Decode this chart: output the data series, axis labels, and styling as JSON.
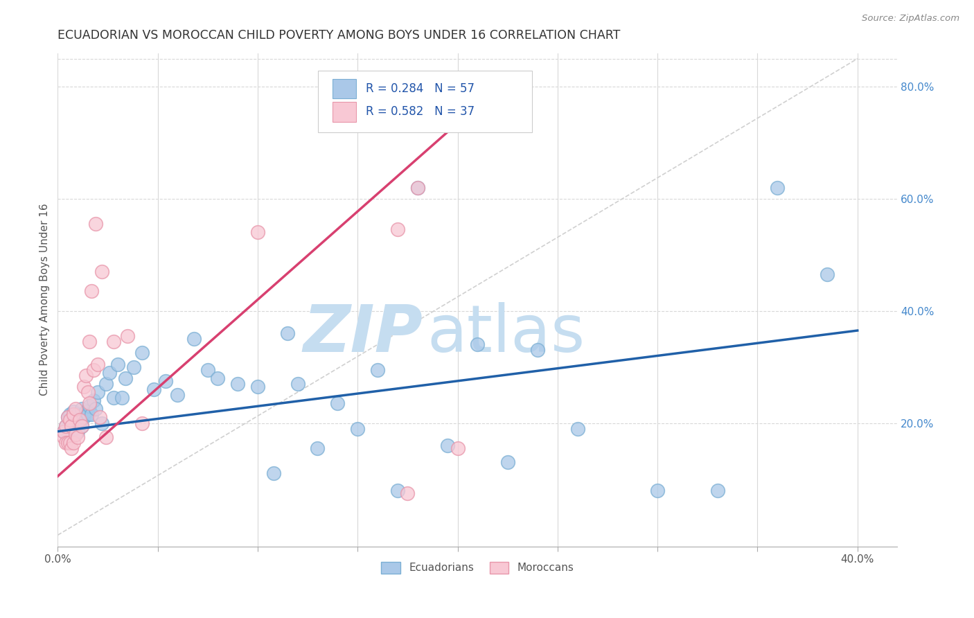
{
  "title": "ECUADORIAN VS MOROCCAN CHILD POVERTY AMONG BOYS UNDER 16 CORRELATION CHART",
  "source": "Source: ZipAtlas.com",
  "ylabel": "Child Poverty Among Boys Under 16",
  "xlim": [
    0.0,
    0.42
  ],
  "ylim": [
    -0.02,
    0.86
  ],
  "plot_xlim": [
    0.0,
    0.4
  ],
  "plot_ylim": [
    0.0,
    0.85
  ],
  "xticks": [
    0.0,
    0.05,
    0.1,
    0.15,
    0.2,
    0.25,
    0.3,
    0.35,
    0.4
  ],
  "xtick_labels": [
    "0.0%",
    "",
    "",
    "",
    "",
    "",
    "",
    "",
    "40.0%"
  ],
  "yticks_right": [
    0.2,
    0.4,
    0.6,
    0.8
  ],
  "ytick_labels_right": [
    "20.0%",
    "40.0%",
    "60.0%",
    "80.0%"
  ],
  "ecu_color": "#aac8e8",
  "ecu_edge_color": "#7bafd4",
  "mor_color": "#f8c8d4",
  "mor_edge_color": "#e896aa",
  "ecu_line_color": "#2060a8",
  "mor_line_color": "#d84070",
  "ref_line_color": "#d0d0d0",
  "watermark": "ZIPatlas",
  "watermark_color": "#c5ddf0",
  "legend_R_ecu": "R = 0.284",
  "legend_N_ecu": "N = 57",
  "legend_R_mor": "R = 0.582",
  "legend_N_mor": "N = 37",
  "ecu_scatter_x": [
    0.003,
    0.004,
    0.005,
    0.005,
    0.006,
    0.007,
    0.008,
    0.008,
    0.009,
    0.01,
    0.01,
    0.011,
    0.012,
    0.012,
    0.013,
    0.014,
    0.015,
    0.016,
    0.017,
    0.018,
    0.019,
    0.02,
    0.022,
    0.024,
    0.026,
    0.028,
    0.03,
    0.032,
    0.034,
    0.038,
    0.042,
    0.048,
    0.054,
    0.06,
    0.068,
    0.075,
    0.08,
    0.09,
    0.1,
    0.108,
    0.115,
    0.12,
    0.13,
    0.14,
    0.15,
    0.16,
    0.17,
    0.18,
    0.195,
    0.21,
    0.225,
    0.24,
    0.26,
    0.3,
    0.33,
    0.36,
    0.385
  ],
  "ecu_scatter_y": [
    0.185,
    0.195,
    0.175,
    0.21,
    0.215,
    0.2,
    0.19,
    0.22,
    0.205,
    0.185,
    0.215,
    0.2,
    0.195,
    0.225,
    0.21,
    0.22,
    0.215,
    0.23,
    0.215,
    0.24,
    0.225,
    0.255,
    0.2,
    0.27,
    0.29,
    0.245,
    0.305,
    0.245,
    0.28,
    0.3,
    0.325,
    0.26,
    0.275,
    0.25,
    0.35,
    0.295,
    0.28,
    0.27,
    0.265,
    0.11,
    0.36,
    0.27,
    0.155,
    0.235,
    0.19,
    0.295,
    0.08,
    0.62,
    0.16,
    0.34,
    0.13,
    0.33,
    0.19,
    0.08,
    0.08,
    0.62,
    0.465
  ],
  "mor_scatter_x": [
    0.003,
    0.003,
    0.004,
    0.004,
    0.005,
    0.005,
    0.006,
    0.006,
    0.007,
    0.007,
    0.008,
    0.008,
    0.009,
    0.009,
    0.01,
    0.011,
    0.012,
    0.013,
    0.014,
    0.015,
    0.016,
    0.016,
    0.017,
    0.018,
    0.019,
    0.02,
    0.021,
    0.022,
    0.024,
    0.028,
    0.035,
    0.042,
    0.1,
    0.17,
    0.175,
    0.18,
    0.2
  ],
  "mor_scatter_y": [
    0.175,
    0.185,
    0.165,
    0.195,
    0.165,
    0.21,
    0.165,
    0.205,
    0.155,
    0.195,
    0.165,
    0.215,
    0.18,
    0.225,
    0.175,
    0.205,
    0.195,
    0.265,
    0.285,
    0.255,
    0.235,
    0.345,
    0.435,
    0.295,
    0.555,
    0.305,
    0.21,
    0.47,
    0.175,
    0.345,
    0.355,
    0.2,
    0.54,
    0.545,
    0.075,
    0.62,
    0.155
  ],
  "ecu_trend_x": [
    0.0,
    0.4
  ],
  "ecu_trend_y": [
    0.185,
    0.365
  ],
  "mor_trend_x": [
    0.0,
    0.2
  ],
  "mor_trend_y": [
    0.105,
    0.735
  ],
  "ref_line_x": [
    0.0,
    0.4
  ],
  "ref_line_y": [
    0.0,
    0.85
  ],
  "background_color": "#ffffff",
  "grid_color": "#d8d8d8",
  "title_color": "#333333",
  "axis_label_color": "#555555",
  "right_tick_color": "#4488cc",
  "legend_text_color": "#2255aa",
  "legend_border_color": "#cccccc"
}
